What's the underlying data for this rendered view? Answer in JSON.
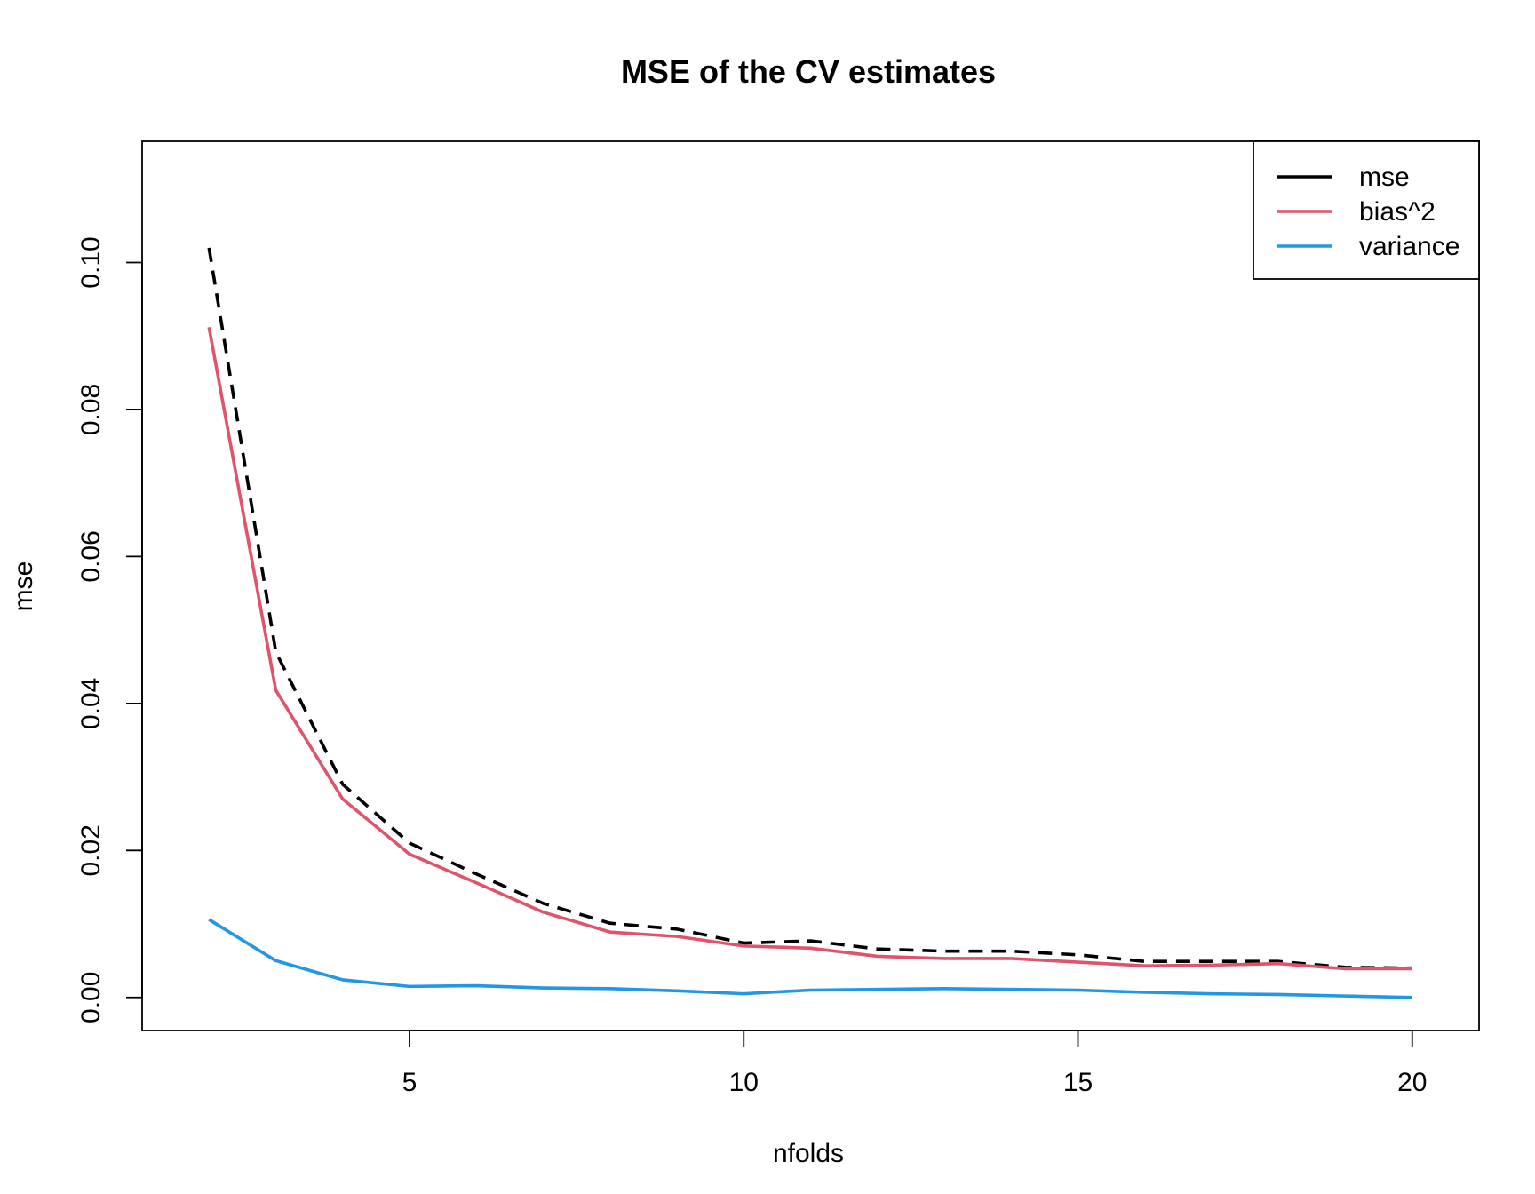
{
  "chart_data": {
    "type": "line",
    "title": "MSE of the CV estimates",
    "xlabel": "nfolds",
    "ylabel": "mse",
    "xlim": [
      1,
      21
    ],
    "ylim": [
      -0.0045,
      0.1165
    ],
    "x_ticks": [
      "5",
      "10",
      "15",
      "20"
    ],
    "y_ticks": [
      "0.00",
      "0.02",
      "0.04",
      "0.06",
      "0.08",
      "0.10"
    ],
    "grid": false,
    "legend_position": "top-right",
    "x": [
      2,
      3,
      4,
      5,
      6,
      7,
      8,
      9,
      10,
      11,
      12,
      13,
      14,
      15,
      16,
      17,
      18,
      19,
      20
    ],
    "series": [
      {
        "name": "mse",
        "color": "#000000",
        "line_style": "dashed",
        "values": [
          0.102,
          0.047,
          0.029,
          0.021,
          0.0168,
          0.0128,
          0.0101,
          0.0093,
          0.0074,
          0.0077,
          0.0066,
          0.0063,
          0.0063,
          0.0058,
          0.0049,
          0.0049,
          0.0049,
          0.0041,
          0.004
        ]
      },
      {
        "name": "bias^2",
        "color": "#DF536B",
        "line_style": "solid",
        "values": [
          0.0912,
          0.0418,
          0.027,
          0.0195,
          0.0156,
          0.0116,
          0.0089,
          0.0083,
          0.007,
          0.0067,
          0.0056,
          0.0053,
          0.0053,
          0.0048,
          0.0043,
          0.0044,
          0.0046,
          0.0039,
          0.0039
        ]
      },
      {
        "name": "variance",
        "color": "#2297E6",
        "line_style": "solid",
        "values": [
          0.0106,
          0.005,
          0.0024,
          0.0015,
          0.0016,
          0.0013,
          0.0012,
          0.0009,
          0.0005,
          0.001,
          0.0011,
          0.0012,
          0.0011,
          0.001,
          0.0007,
          0.0005,
          0.0004,
          0.0002,
          0.0
        ]
      }
    ]
  }
}
